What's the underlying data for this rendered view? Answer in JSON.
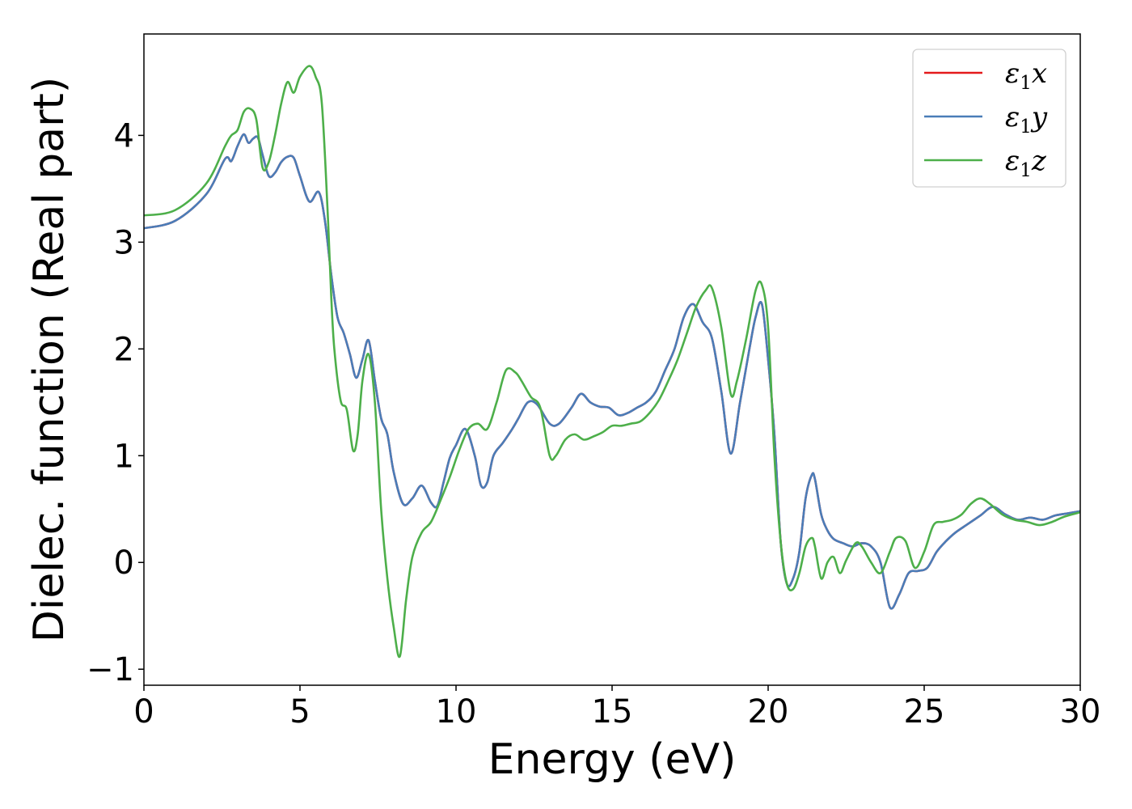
{
  "chart_data": {
    "type": "line",
    "xlabel": "Energy (eV)",
    "ylabel": "Dielec. function (Real part)",
    "xlim": [
      0,
      30
    ],
    "ylim": [
      -1.15,
      4.95
    ],
    "xticks": [
      0,
      5,
      10,
      15,
      20,
      25,
      30
    ],
    "xtick_labels": [
      "0",
      "5",
      "10",
      "15",
      "20",
      "25",
      "30"
    ],
    "yticks": [
      -1,
      0,
      1,
      2,
      3,
      4
    ],
    "ytick_labels": [
      "−1",
      "0",
      "1",
      "2",
      "3",
      "4"
    ],
    "grid": false,
    "legend": {
      "position": "top-right",
      "entries": [
        {
          "symbol": "ε",
          "sub": "1",
          "axis": "x",
          "color": "#e41a1c"
        },
        {
          "symbol": "ε",
          "sub": "1",
          "axis": "y",
          "color": "#4a7db8"
        },
        {
          "symbol": "ε",
          "sub": "1",
          "axis": "z",
          "color": "#4daf4a"
        }
      ]
    },
    "series": [
      {
        "color": "#e41a1c",
        "x": [
          0,
          1,
          2,
          2.6,
          2.8,
          3.0,
          3.2,
          3.35,
          3.5,
          3.65,
          3.8,
          4.0,
          4.2,
          4.4,
          4.6,
          4.8,
          5.0,
          5.3,
          5.6,
          5.8,
          6.0,
          6.2,
          6.4,
          6.6,
          6.8,
          7.0,
          7.2,
          7.4,
          7.6,
          7.8,
          8.0,
          8.3,
          8.6,
          8.9,
          9.2,
          9.4,
          9.6,
          9.8,
          10.0,
          10.3,
          10.6,
          10.8,
          11.0,
          11.2,
          11.5,
          11.8,
          12.0,
          12.3,
          12.6,
          13.0,
          13.3,
          13.7,
          14.0,
          14.3,
          14.6,
          14.9,
          15.2,
          15.5,
          15.8,
          16.1,
          16.4,
          16.7,
          17.0,
          17.3,
          17.6,
          17.9,
          18.2,
          18.5,
          18.8,
          19.1,
          19.4,
          19.6,
          19.8,
          20.0,
          20.2,
          20.4,
          20.6,
          20.8,
          21.0,
          21.2,
          21.4,
          21.5,
          21.7,
          21.9,
          22.1,
          22.4,
          22.7,
          23.0,
          23.3,
          23.6,
          23.9,
          24.2,
          24.5,
          24.8,
          25.1,
          25.4,
          25.7,
          26.0,
          26.4,
          26.8,
          27.2,
          27.6,
          28.0,
          28.4,
          28.8,
          29.2,
          29.6,
          30.0
        ],
        "y": [
          3.13,
          3.2,
          3.45,
          3.78,
          3.76,
          3.9,
          4.01,
          3.93,
          3.97,
          3.98,
          3.82,
          3.62,
          3.65,
          3.75,
          3.8,
          3.79,
          3.62,
          3.38,
          3.47,
          3.2,
          2.7,
          2.3,
          2.15,
          1.95,
          1.73,
          1.9,
          2.08,
          1.7,
          1.35,
          1.2,
          0.85,
          0.55,
          0.6,
          0.72,
          0.56,
          0.53,
          0.75,
          0.98,
          1.1,
          1.25,
          1.0,
          0.72,
          0.75,
          1.0,
          1.12,
          1.25,
          1.35,
          1.5,
          1.48,
          1.3,
          1.3,
          1.45,
          1.58,
          1.5,
          1.46,
          1.45,
          1.38,
          1.4,
          1.45,
          1.5,
          1.6,
          1.8,
          2.0,
          2.3,
          2.42,
          2.25,
          2.1,
          1.6,
          1.02,
          1.5,
          2.0,
          2.3,
          2.42,
          1.9,
          1.2,
          0.2,
          -0.2,
          -0.15,
          0.1,
          0.6,
          0.82,
          0.78,
          0.45,
          0.3,
          0.22,
          0.18,
          0.15,
          0.18,
          0.15,
          0.0,
          -0.42,
          -0.3,
          -0.1,
          -0.08,
          -0.05,
          0.1,
          0.2,
          0.28,
          0.36,
          0.44,
          0.52,
          0.45,
          0.4,
          0.42,
          0.4,
          0.44,
          0.46,
          0.48
        ]
      },
      {
        "color": "#4a7db8",
        "x": [
          0,
          1,
          2,
          2.6,
          2.8,
          3.0,
          3.2,
          3.35,
          3.5,
          3.65,
          3.8,
          4.0,
          4.2,
          4.4,
          4.6,
          4.8,
          5.0,
          5.3,
          5.6,
          5.8,
          6.0,
          6.2,
          6.4,
          6.6,
          6.8,
          7.0,
          7.2,
          7.4,
          7.6,
          7.8,
          8.0,
          8.3,
          8.6,
          8.9,
          9.2,
          9.4,
          9.6,
          9.8,
          10.0,
          10.3,
          10.6,
          10.8,
          11.0,
          11.2,
          11.5,
          11.8,
          12.0,
          12.3,
          12.6,
          13.0,
          13.3,
          13.7,
          14.0,
          14.3,
          14.6,
          14.9,
          15.2,
          15.5,
          15.8,
          16.1,
          16.4,
          16.7,
          17.0,
          17.3,
          17.6,
          17.9,
          18.2,
          18.5,
          18.8,
          19.1,
          19.4,
          19.6,
          19.8,
          20.0,
          20.2,
          20.4,
          20.6,
          20.8,
          21.0,
          21.2,
          21.4,
          21.5,
          21.7,
          21.9,
          22.1,
          22.4,
          22.7,
          23.0,
          23.3,
          23.6,
          23.9,
          24.2,
          24.5,
          24.8,
          25.1,
          25.4,
          25.7,
          26.0,
          26.4,
          26.8,
          27.2,
          27.6,
          28.0,
          28.4,
          28.8,
          29.2,
          29.6,
          30.0
        ],
        "y": [
          3.13,
          3.2,
          3.45,
          3.78,
          3.76,
          3.9,
          4.01,
          3.93,
          3.97,
          3.98,
          3.82,
          3.62,
          3.65,
          3.75,
          3.8,
          3.79,
          3.62,
          3.38,
          3.47,
          3.2,
          2.7,
          2.3,
          2.15,
          1.95,
          1.73,
          1.9,
          2.08,
          1.7,
          1.35,
          1.2,
          0.85,
          0.55,
          0.6,
          0.72,
          0.56,
          0.53,
          0.75,
          0.98,
          1.1,
          1.25,
          1.0,
          0.72,
          0.75,
          1.0,
          1.12,
          1.25,
          1.35,
          1.5,
          1.48,
          1.3,
          1.3,
          1.45,
          1.58,
          1.5,
          1.46,
          1.45,
          1.38,
          1.4,
          1.45,
          1.5,
          1.6,
          1.8,
          2.0,
          2.3,
          2.42,
          2.25,
          2.1,
          1.6,
          1.02,
          1.5,
          2.0,
          2.3,
          2.42,
          1.9,
          1.2,
          0.2,
          -0.2,
          -0.15,
          0.1,
          0.6,
          0.82,
          0.78,
          0.45,
          0.3,
          0.22,
          0.18,
          0.15,
          0.18,
          0.15,
          0.0,
          -0.42,
          -0.3,
          -0.1,
          -0.08,
          -0.05,
          0.1,
          0.2,
          0.28,
          0.36,
          0.44,
          0.52,
          0.45,
          0.4,
          0.42,
          0.4,
          0.44,
          0.46,
          0.48
        ]
      },
      {
        "color": "#4daf4a",
        "x": [
          0,
          1,
          2,
          2.6,
          2.8,
          3.0,
          3.2,
          3.4,
          3.6,
          3.8,
          4.0,
          4.2,
          4.4,
          4.6,
          4.8,
          5.0,
          5.3,
          5.5,
          5.7,
          5.9,
          6.0,
          6.1,
          6.3,
          6.5,
          6.7,
          6.85,
          7.0,
          7.2,
          7.4,
          7.6,
          7.8,
          8.0,
          8.2,
          8.4,
          8.6,
          8.9,
          9.2,
          9.5,
          9.8,
          10.1,
          10.4,
          10.7,
          11.0,
          11.3,
          11.6,
          11.9,
          12.1,
          12.4,
          12.7,
          13.0,
          13.2,
          13.5,
          13.8,
          14.1,
          14.4,
          14.7,
          15.0,
          15.3,
          15.6,
          15.9,
          16.2,
          16.5,
          16.8,
          17.1,
          17.4,
          17.7,
          18.0,
          18.2,
          18.5,
          18.8,
          19.0,
          19.3,
          19.6,
          19.8,
          20.0,
          20.2,
          20.4,
          20.6,
          20.8,
          21.0,
          21.2,
          21.4,
          21.5,
          21.7,
          21.9,
          22.1,
          22.3,
          22.5,
          22.8,
          23.0,
          23.3,
          23.6,
          23.9,
          24.1,
          24.4,
          24.7,
          25.0,
          25.3,
          25.6,
          25.9,
          26.2,
          26.5,
          26.8,
          27.1,
          27.5,
          27.9,
          28.3,
          28.7,
          29.1,
          29.5,
          30.0
        ],
        "y": [
          3.25,
          3.3,
          3.55,
          3.9,
          4.0,
          4.05,
          4.22,
          4.25,
          4.15,
          3.7,
          3.75,
          4.0,
          4.3,
          4.5,
          4.4,
          4.55,
          4.65,
          4.55,
          4.3,
          3.2,
          2.5,
          2.0,
          1.52,
          1.43,
          1.05,
          1.2,
          1.7,
          1.95,
          1.5,
          0.5,
          -0.15,
          -0.6,
          -0.88,
          -0.35,
          0.05,
          0.28,
          0.38,
          0.58,
          0.8,
          1.05,
          1.25,
          1.3,
          1.25,
          1.5,
          1.8,
          1.78,
          1.7,
          1.55,
          1.45,
          1.0,
          1.0,
          1.15,
          1.2,
          1.15,
          1.18,
          1.22,
          1.28,
          1.28,
          1.3,
          1.32,
          1.4,
          1.52,
          1.7,
          1.9,
          2.15,
          2.4,
          2.55,
          2.57,
          2.2,
          1.58,
          1.7,
          2.1,
          2.55,
          2.6,
          2.2,
          1.0,
          0.2,
          -0.2,
          -0.25,
          -0.1,
          0.15,
          0.23,
          0.15,
          -0.15,
          0.0,
          0.05,
          -0.1,
          0.02,
          0.18,
          0.15,
          0.0,
          -0.1,
          0.1,
          0.23,
          0.2,
          -0.05,
          0.1,
          0.35,
          0.38,
          0.4,
          0.45,
          0.55,
          0.6,
          0.55,
          0.45,
          0.4,
          0.38,
          0.35,
          0.38,
          0.43,
          0.47
        ]
      }
    ]
  }
}
